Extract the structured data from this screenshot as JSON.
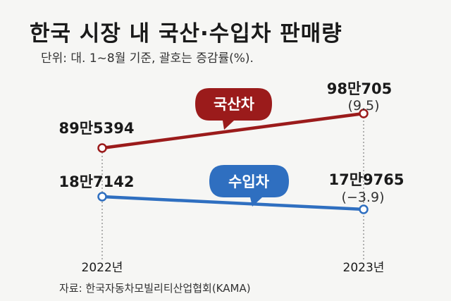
{
  "title": "한국 시장 내 국산·수입차 판매량",
  "subtitle": "단위: 대. 1~8월 기준, 괄호는 증감률(%).",
  "source": "자료: 한국자동차모빌리티산업협회(KAMA)",
  "colors": {
    "domestic": "#9b1b1b",
    "imported": "#2f6fc0",
    "guide": "#8a8a8a",
    "background": "#f6f6f4"
  },
  "chart_data": {
    "type": "line",
    "x": [
      "2022년",
      "2023년"
    ],
    "series": [
      {
        "name": "국산차",
        "values": [
          895394,
          980705
        ],
        "value_labels": [
          "89만5394",
          "98만705"
        ],
        "change_label": "(9.5)",
        "color": "#9b1b1b"
      },
      {
        "name": "수입차",
        "values": [
          187142,
          179765
        ],
        "value_labels": [
          "18만7142",
          "17만9765"
        ],
        "change_label": "(−3.9)",
        "color": "#2f6fc0"
      }
    ],
    "xlabel": "",
    "ylabel": "",
    "grid": false,
    "legend": "bubble labels on lines"
  }
}
